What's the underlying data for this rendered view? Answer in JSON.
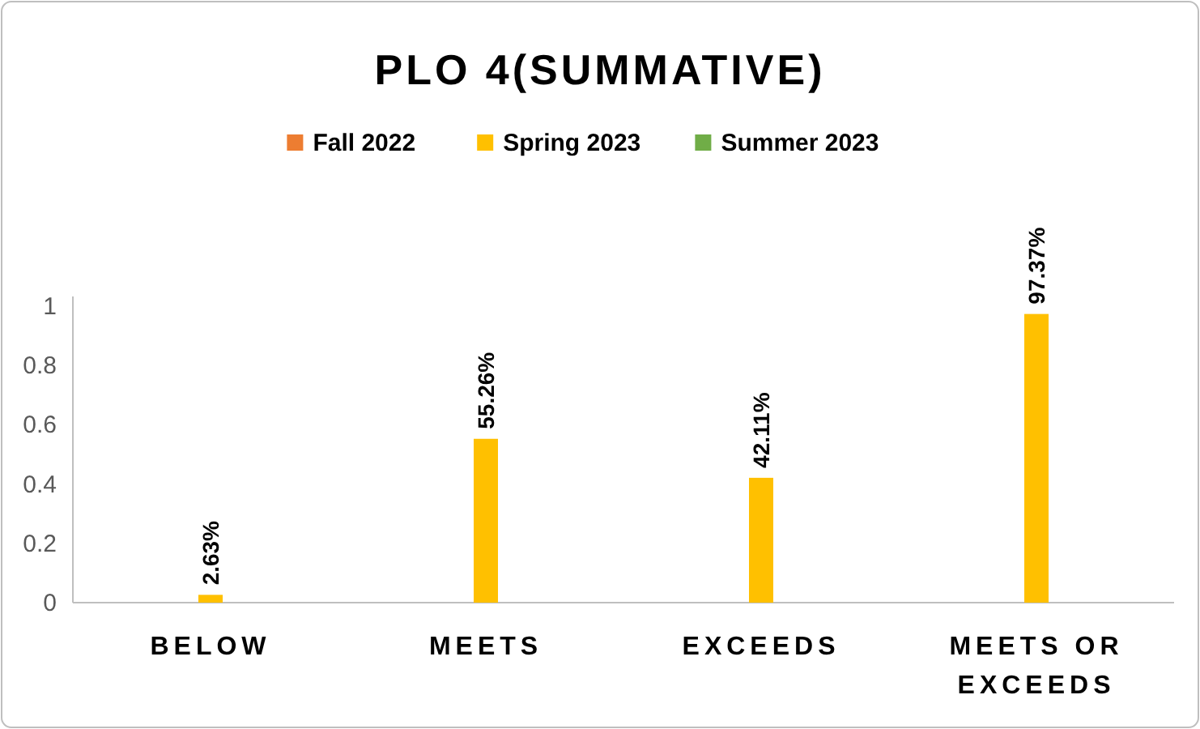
{
  "chart_data": {
    "type": "bar",
    "title": "PLO 4(SUMMATIVE)",
    "categories": [
      "BELOW",
      "MEETS",
      "EXCEEDS",
      "MEETS OR EXCEEDS"
    ],
    "series": [
      {
        "name": "Fall 2022",
        "color": "#ed7d31",
        "values": [
          null,
          null,
          null,
          null
        ]
      },
      {
        "name": "Spring 2023",
        "color": "#ffc000",
        "values": [
          0.0263,
          0.5526,
          0.4211,
          0.9737
        ],
        "value_labels": [
          "2.63%",
          "55.26%",
          "42.11%",
          "97.37%"
        ]
      },
      {
        "name": "Summer 2023",
        "color": "#70ad47",
        "values": [
          null,
          null,
          null,
          null
        ]
      }
    ],
    "ylim": [
      0,
      1
    ],
    "yticks": [
      0,
      0.2,
      0.4,
      0.6,
      0.8,
      1
    ],
    "grid": false,
    "legend": "top"
  }
}
